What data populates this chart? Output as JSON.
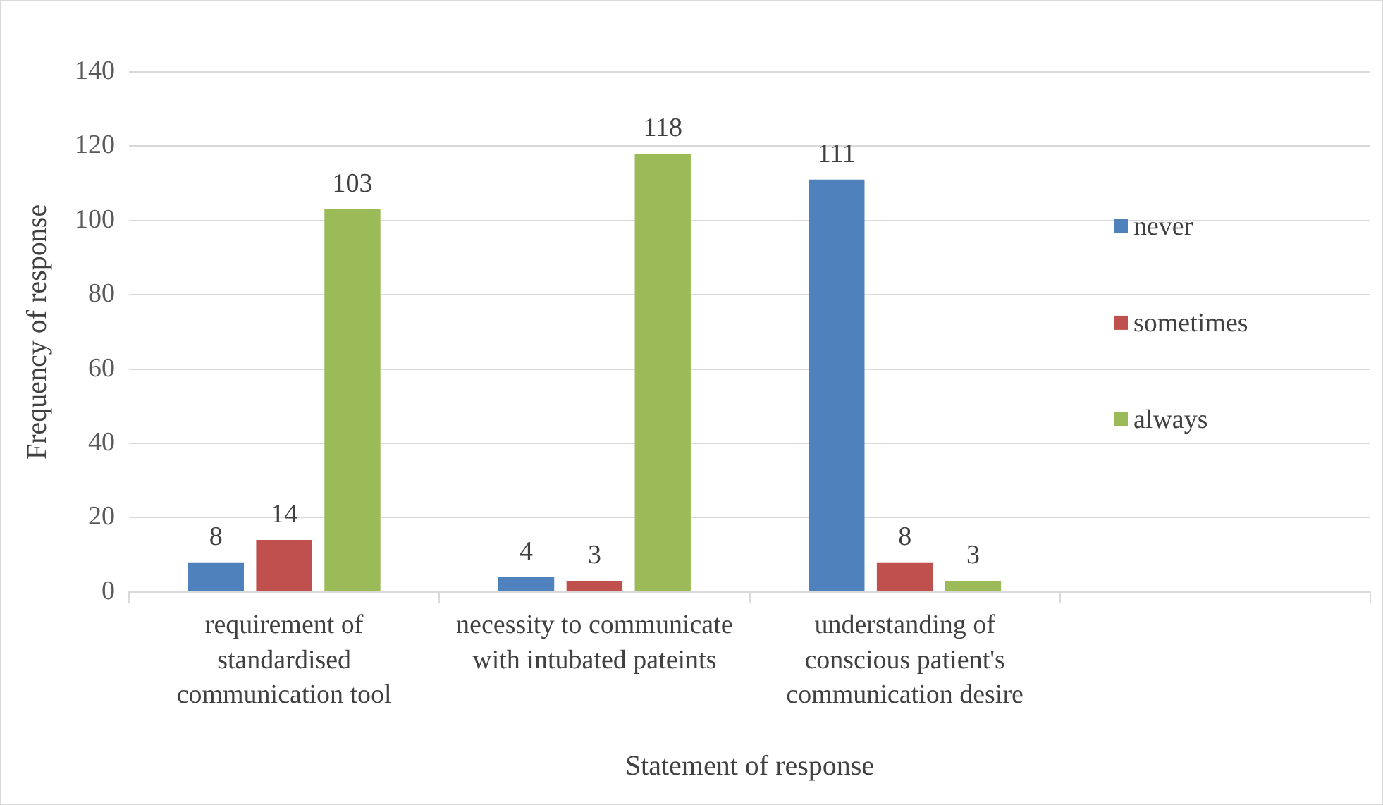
{
  "chart_data": {
    "type": "bar",
    "xlabel": "Statement of response",
    "ylabel": "Frequency of response",
    "categories": [
      "requirement of standardised communication tool",
      "necessity to communicate with intubated pateints",
      "understanding of conscious patient's communication desire",
      null
    ],
    "series": [
      {
        "name": "never",
        "color": "#4f81bd",
        "values": [
          8,
          4,
          111,
          null
        ]
      },
      {
        "name": "sometimes",
        "color": "#c0504d",
        "values": [
          14,
          3,
          8,
          null
        ]
      },
      {
        "name": "always",
        "color": "#9bbb59",
        "values": [
          103,
          118,
          3,
          null
        ]
      }
    ],
    "ylim": [
      0,
      140
    ],
    "yticks": [
      0,
      20,
      40,
      60,
      80,
      100,
      120,
      140
    ],
    "grid": "y",
    "legend": "right",
    "data_labels": true
  }
}
